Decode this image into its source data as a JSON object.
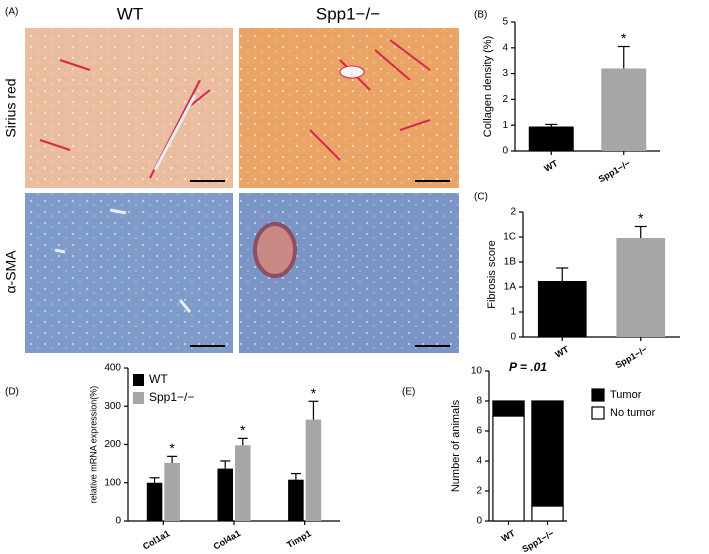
{
  "panel_labels": [
    "(A)",
    "(B)",
    "(C)",
    "(D)",
    "(E)"
  ],
  "panel_a": {
    "columns": [
      "WT",
      "Spp1−/−"
    ],
    "rows": [
      "Sirius red",
      "α-SMA"
    ]
  },
  "chart_data": [
    {
      "type": "bar",
      "ylabel": "Collagen density (%)",
      "categories": [
        "WT",
        "Spp1−/−"
      ],
      "values": [
        0.95,
        3.2
      ],
      "errors": [
        0.08,
        0.85
      ],
      "colors": [
        "#000000",
        "#a6a6a6"
      ],
      "ylim": [
        0,
        5
      ],
      "yticks": [
        0,
        1,
        2,
        3,
        4,
        5
      ],
      "annotations": [
        {
          "text": "*",
          "category": "Spp1−/−"
        }
      ]
    },
    {
      "type": "bar",
      "ylabel": "Fibrosis score",
      "categories": [
        "WT",
        "Spp1−/−"
      ],
      "values": [
        2.24,
        3.96
      ],
      "errors": [
        0.52,
        0.46
      ],
      "colors": [
        "#000000",
        "#a6a6a6"
      ],
      "ylim": [
        0,
        5
      ],
      "yticks": [
        0,
        1,
        {
          "value": 2,
          "label": "1A"
        },
        {
          "value": 3,
          "label": "1B"
        },
        {
          "value": 4,
          "label": "1C"
        },
        {
          "value": 5,
          "label": "2"
        }
      ],
      "annotations": [
        {
          "text": "*",
          "category": "Spp1−/−"
        }
      ]
    },
    {
      "type": "grouped_bar",
      "ylabel": "relative mRNA expression(%)",
      "categories": [
        "Col1a1",
        "Col4a1",
        "Timp1"
      ],
      "series": [
        {
          "name": "WT",
          "color": "#000000",
          "values": [
            100,
            137,
            108
          ],
          "errors": [
            13,
            20,
            16
          ]
        },
        {
          "name": "Spp1−/−",
          "color": "#a6a6a6",
          "values": [
            152,
            198,
            265
          ],
          "errors": [
            17,
            18,
            48
          ]
        }
      ],
      "ylim": [
        0,
        400
      ],
      "yticks": [
        0,
        100,
        200,
        300,
        400
      ],
      "legend": "top-left",
      "annotations": [
        {
          "text": "*",
          "category": "Col1a1",
          "series": "Spp1−/−"
        },
        {
          "text": "*",
          "category": "Col4a1",
          "series": "Spp1−/−"
        },
        {
          "text": "*",
          "category": "Timp1",
          "series": "Spp1−/−"
        }
      ]
    },
    {
      "type": "stacked_bar",
      "title": "P = .01",
      "ylabel": "Number of animals",
      "categories": [
        "WT",
        "Spp1−/−"
      ],
      "series": [
        {
          "name": "No tumor",
          "color": "#ffffff",
          "values": [
            7,
            1
          ]
        },
        {
          "name": "Tumor",
          "color": "#000000",
          "values": [
            1,
            7
          ]
        }
      ],
      "ylim": [
        0,
        10
      ],
      "yticks": [
        0,
        2,
        4,
        6,
        8,
        10
      ],
      "legend": "right"
    }
  ]
}
